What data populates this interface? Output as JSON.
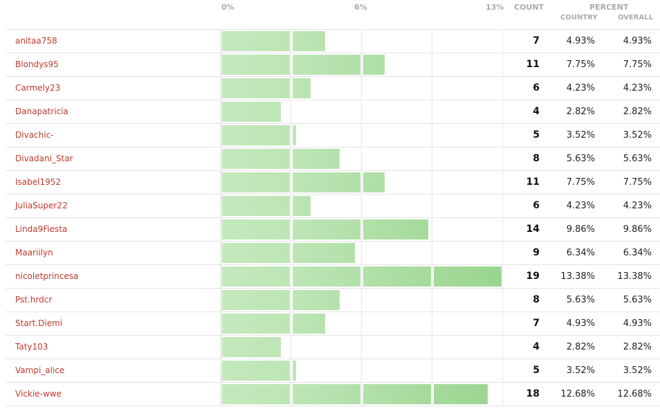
{
  "axis": {
    "tick_0": "0%",
    "tick_mid": "6%",
    "tick_max": "13%",
    "max_value": 13.38
  },
  "columns": {
    "count": "COUNT",
    "percent": "PERCENT",
    "country": "COUNTRY",
    "overall": "OVERALL"
  },
  "colors": {
    "bar_light": "#c4e8bd",
    "bar_dark": "#99d58f",
    "name_link": "#c0392b"
  },
  "chart_data": {
    "type": "bar",
    "orientation": "horizontal",
    "xlim": [
      0,
      13.38
    ],
    "x_ticks": [
      "0%",
      "6%",
      "13%"
    ],
    "rows": [
      {
        "name": "anitaa758",
        "count": "7",
        "country": "4.93%",
        "overall": "4.93%",
        "value": 4.93
      },
      {
        "name": "Blondys95",
        "count": "11",
        "country": "7.75%",
        "overall": "7.75%",
        "value": 7.75
      },
      {
        "name": "Carmely23",
        "count": "6",
        "country": "4.23%",
        "overall": "4.23%",
        "value": 4.23
      },
      {
        "name": "Danapatricia",
        "count": "4",
        "country": "2.82%",
        "overall": "2.82%",
        "value": 2.82
      },
      {
        "name": "Divachic-",
        "count": "5",
        "country": "3.52%",
        "overall": "3.52%",
        "value": 3.52
      },
      {
        "name": "Divadani_Star",
        "count": "8",
        "country": "5.63%",
        "overall": "5.63%",
        "value": 5.63
      },
      {
        "name": "Isabel1952",
        "count": "11",
        "country": "7.75%",
        "overall": "7.75%",
        "value": 7.75
      },
      {
        "name": "JuliaSuper22",
        "count": "6",
        "country": "4.23%",
        "overall": "4.23%",
        "value": 4.23
      },
      {
        "name": "Linda9Fiesta",
        "count": "14",
        "country": "9.86%",
        "overall": "9.86%",
        "value": 9.86
      },
      {
        "name": "Maariilyn",
        "count": "9",
        "country": "6.34%",
        "overall": "6.34%",
        "value": 6.34
      },
      {
        "name": "nicoletprincesa",
        "count": "19",
        "country": "13.38%",
        "overall": "13.38%",
        "value": 13.38
      },
      {
        "name": "Pst.hrdcr",
        "count": "8",
        "country": "5.63%",
        "overall": "5.63%",
        "value": 5.63
      },
      {
        "name": "Start.Diemi",
        "count": "7",
        "country": "4.93%",
        "overall": "4.93%",
        "value": 4.93
      },
      {
        "name": "Taty103",
        "count": "4",
        "country": "2.82%",
        "overall": "2.82%",
        "value": 2.82
      },
      {
        "name": "Vampi_alice",
        "count": "5",
        "country": "3.52%",
        "overall": "3.52%",
        "value": 3.52
      },
      {
        "name": "Vickie-wwe",
        "count": "18",
        "country": "12.68%",
        "overall": "12.68%",
        "value": 12.68
      }
    ]
  }
}
